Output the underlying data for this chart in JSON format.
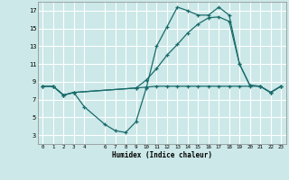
{
  "xlabel": "Humidex (Indice chaleur)",
  "bg_color": "#cce8e8",
  "grid_color": "#ffffff",
  "line_color": "#1a6b6b",
  "xlim": [
    -0.5,
    23.5
  ],
  "ylim": [
    2.0,
    18.0
  ],
  "xticks": [
    0,
    1,
    2,
    3,
    4,
    6,
    7,
    8,
    9,
    10,
    11,
    12,
    13,
    14,
    15,
    16,
    17,
    18,
    19,
    20,
    21,
    22,
    23
  ],
  "yticks": [
    3,
    5,
    7,
    9,
    11,
    13,
    15,
    17
  ],
  "line1_x": [
    0,
    1,
    2,
    3,
    4,
    6,
    7,
    8,
    9,
    10,
    11,
    12,
    13,
    14,
    15,
    16,
    17,
    18,
    19,
    20,
    21,
    22,
    23
  ],
  "line1_y": [
    8.5,
    8.5,
    7.5,
    7.8,
    6.2,
    4.2,
    3.5,
    3.3,
    4.5,
    8.3,
    13.0,
    15.2,
    17.4,
    17.0,
    16.5,
    16.5,
    17.4,
    16.5,
    11.0,
    8.6,
    8.5,
    7.8,
    8.5
  ],
  "line2_x": [
    0,
    1,
    2,
    3,
    9,
    10,
    11,
    12,
    13,
    14,
    15,
    16,
    17,
    18,
    19,
    20,
    21,
    22,
    23
  ],
  "line2_y": [
    8.5,
    8.5,
    7.5,
    7.8,
    8.3,
    9.2,
    10.5,
    12.0,
    13.2,
    14.5,
    15.5,
    16.2,
    16.3,
    15.8,
    11.0,
    8.6,
    8.5,
    7.8,
    8.5
  ],
  "line3_x": [
    0,
    1,
    2,
    3,
    9,
    10,
    11,
    12,
    13,
    14,
    15,
    16,
    17,
    18,
    19,
    20,
    21,
    22,
    23
  ],
  "line3_y": [
    8.5,
    8.5,
    7.5,
    7.8,
    8.3,
    8.4,
    8.5,
    8.5,
    8.5,
    8.5,
    8.5,
    8.5,
    8.5,
    8.5,
    8.5,
    8.5,
    8.5,
    7.8,
    8.5
  ]
}
